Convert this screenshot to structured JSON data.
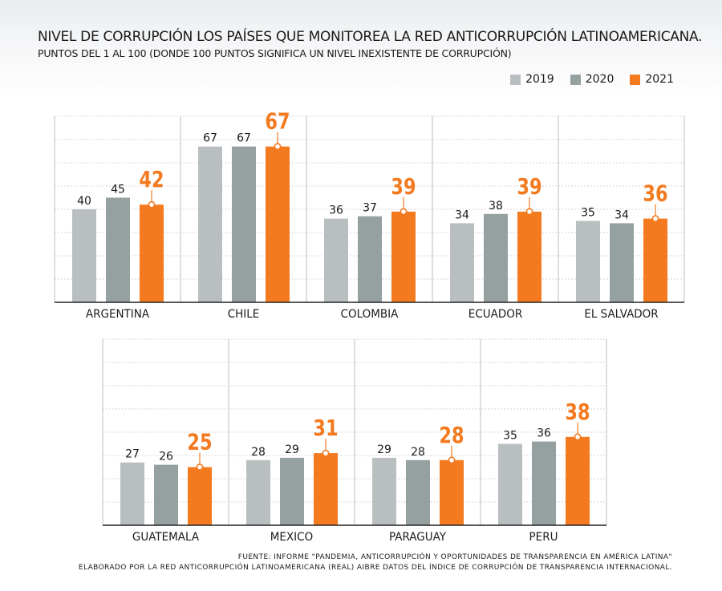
{
  "header": {
    "title": "NIVEL DE CORRUPCIÓN LOS PAÍSES QUE MONITOREA LA  RED ANTICORRUPCIÓN LATINOAMERICANA.",
    "subtitle": "PUNTOS DEL 1 AL 100 (DONDE 100 PUNTOS SIGNIFICA UN NIVEL INEXISTENTE DE CORRUPCIÓN)"
  },
  "legend": [
    {
      "label": "2019",
      "color": "#b9bfc0"
    },
    {
      "label": "2020",
      "color": "#95a0a0"
    },
    {
      "label": "2021",
      "color": "#f47a20"
    }
  ],
  "chart_data": {
    "type": "bar",
    "series_names": [
      "2019",
      "2020",
      "2021"
    ],
    "colors": [
      "#b9bfc0",
      "#95a0a0",
      "#f47a20"
    ],
    "ylim": [
      0,
      80
    ],
    "grid": true,
    "legend_position": "top-right",
    "panels": [
      {
        "categories": [
          "ARGENTINA",
          "CHILE",
          "COLOMBIA",
          "ECUADOR",
          "EL SALVADOR"
        ],
        "series": [
          {
            "name": "2019",
            "values": [
              40,
              67,
              36,
              34,
              35
            ]
          },
          {
            "name": "2020",
            "values": [
              45,
              67,
              37,
              38,
              34
            ]
          },
          {
            "name": "2021",
            "values": [
              42,
              67,
              39,
              39,
              36
            ]
          }
        ]
      },
      {
        "categories": [
          "GUATEMALA",
          "MEXICO",
          "PARAGUAY",
          "PERU"
        ],
        "series": [
          {
            "name": "2019",
            "values": [
              27,
              28,
              29,
              35
            ]
          },
          {
            "name": "2020",
            "values": [
              26,
              29,
              28,
              36
            ]
          },
          {
            "name": "2021",
            "values": [
              25,
              31,
              28,
              38
            ]
          }
        ]
      }
    ]
  },
  "footer": {
    "line1": "FUENTE: INFORME \"PANDEMIA, ANTICORRUPCIÓN Y OPORTUNIDADES DE TRANSPARENCIA EN AMÉRICA LATINA\"",
    "line2": "ELABORADO POR LA RED ANTICORRUPCIÓN LATINOAMERICANA (REAL) AIBRE DATOS DEL ÍNDICE DE CORRUPCIÓN DE TRANSPARENCIA INTERNACIONAL."
  }
}
